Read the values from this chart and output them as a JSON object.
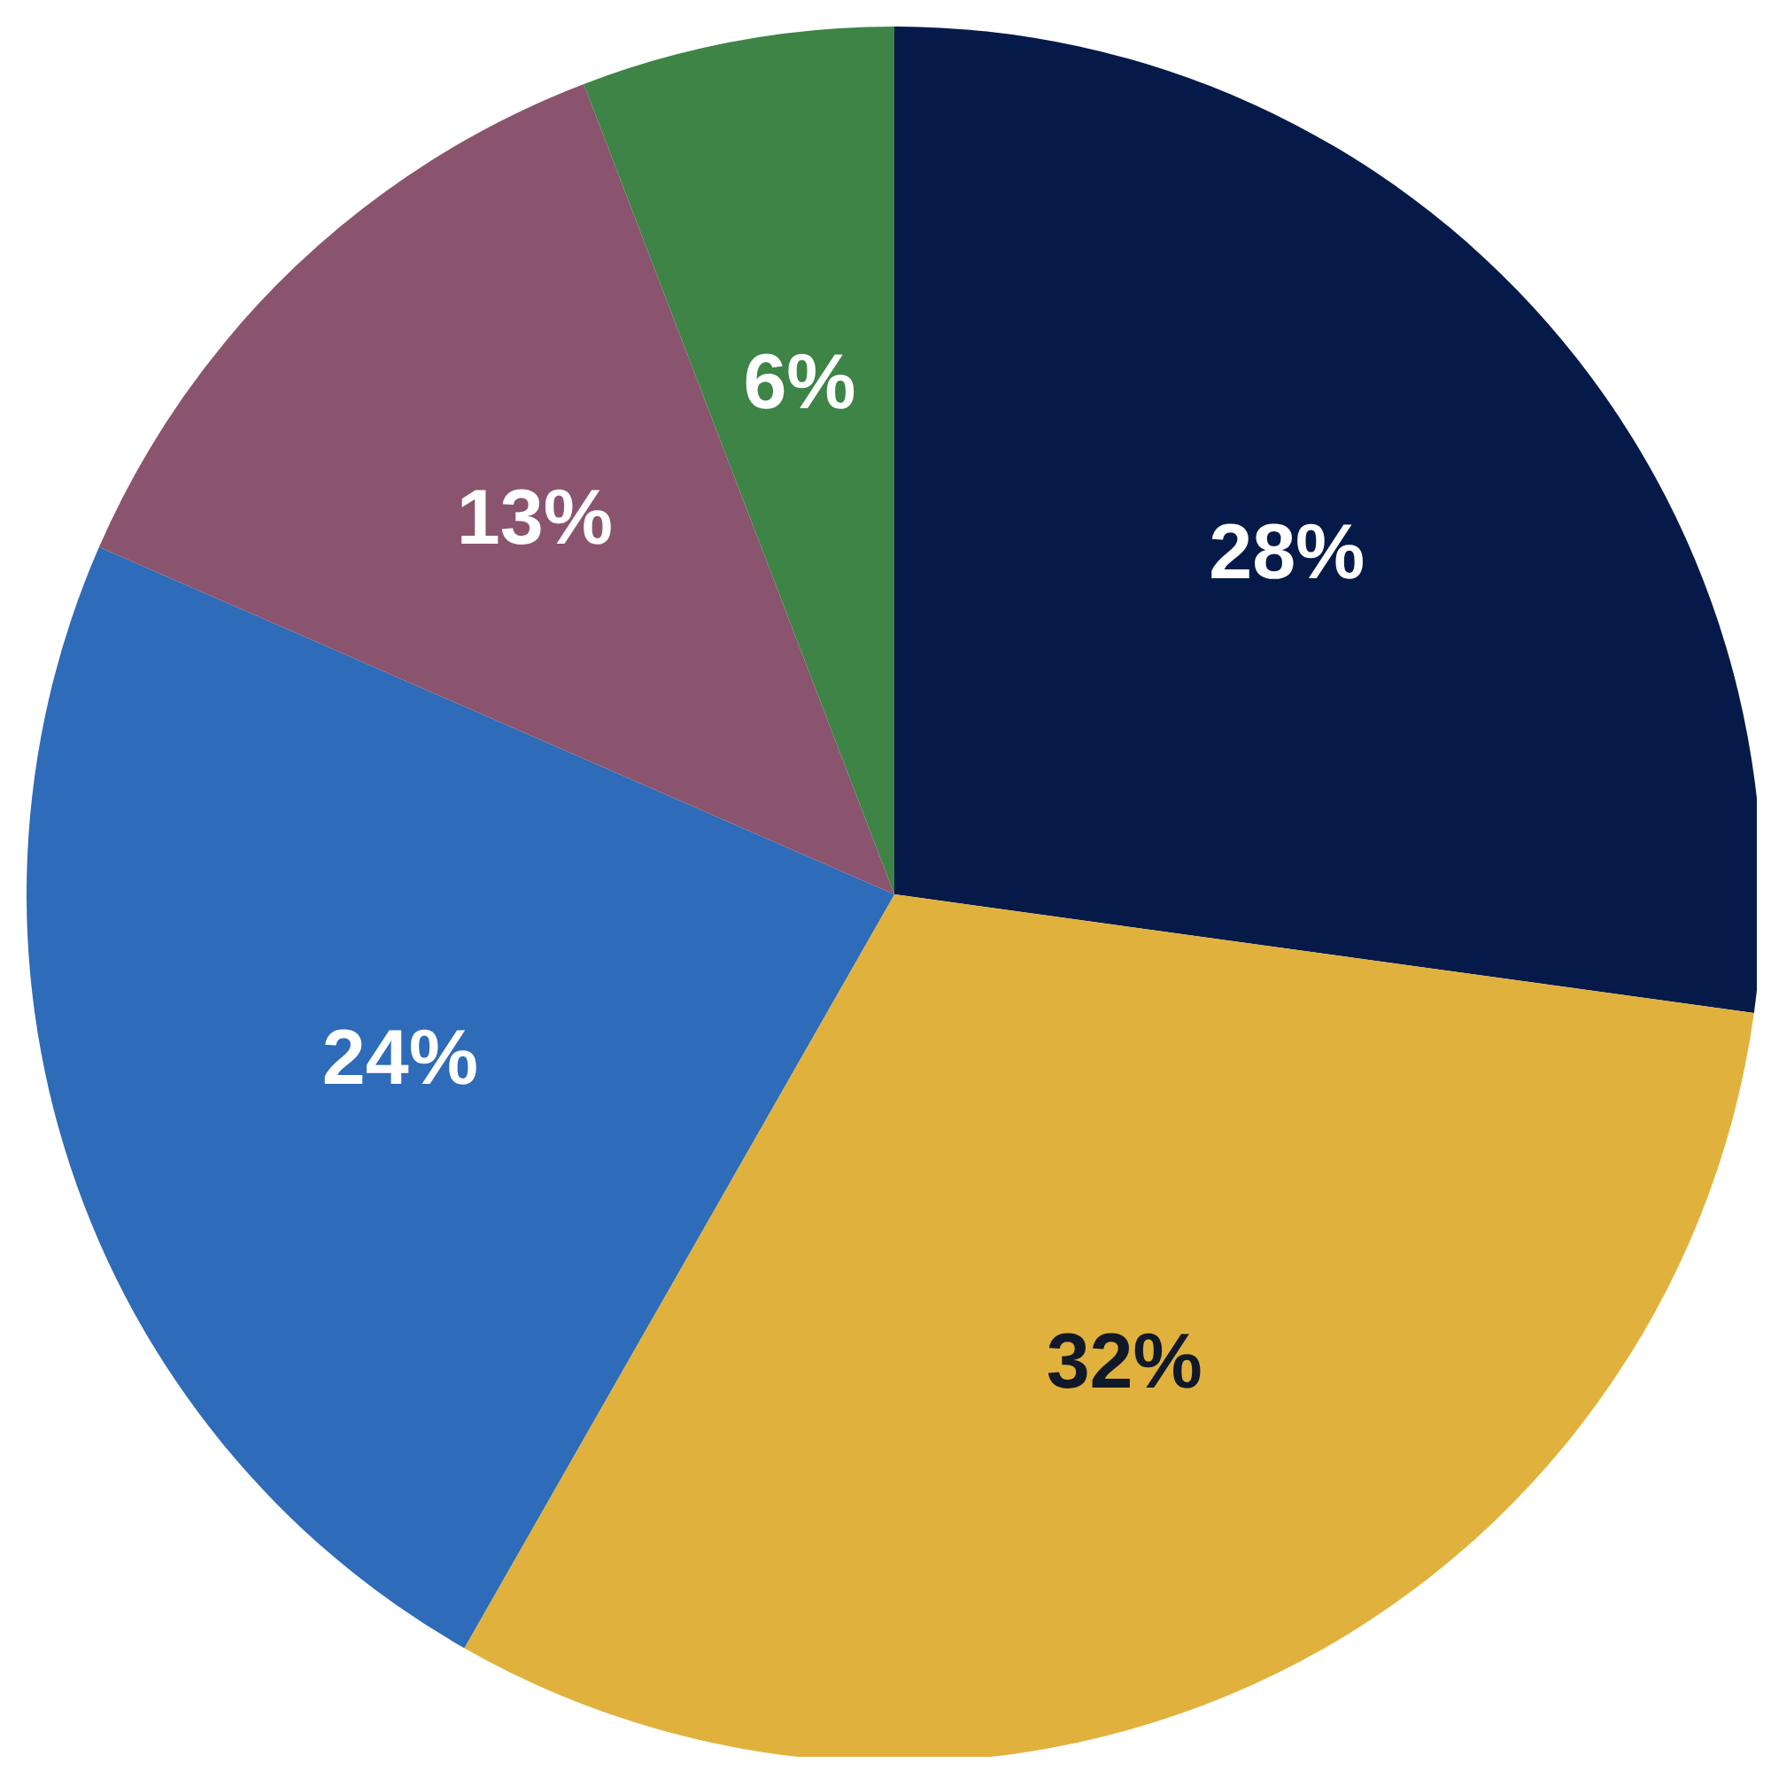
{
  "chart_data": {
    "type": "pie",
    "categories": [
      null,
      null,
      null,
      null,
      null
    ],
    "values": [
      28,
      32,
      24,
      13,
      6
    ],
    "value_labels": [
      "28%",
      "32%",
      "24%",
      "13%",
      "6%"
    ],
    "colors": [
      "#061a4a",
      "#e0b23d",
      "#2e6bb8",
      "#8b546e",
      "#3d8446"
    ],
    "legend": false
  }
}
